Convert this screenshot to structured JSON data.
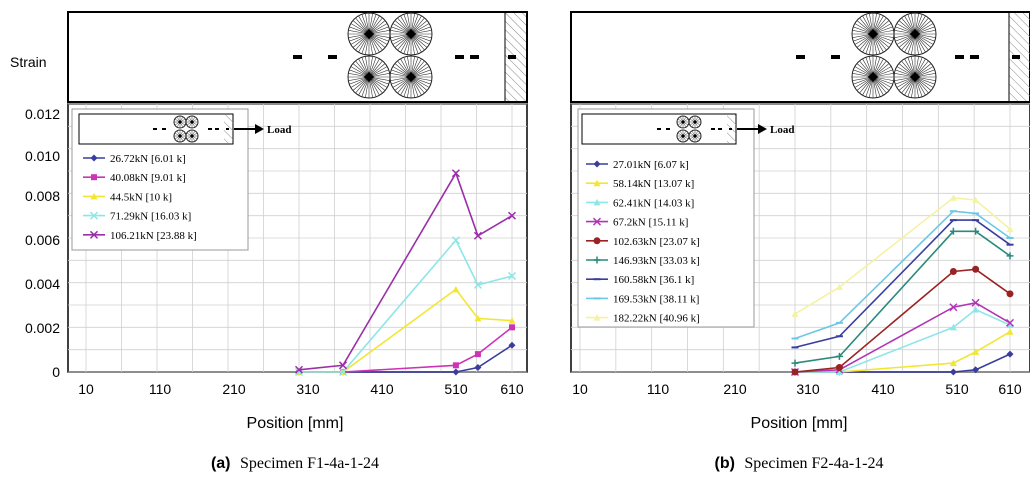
{
  "strain_label": "Strain",
  "load_label": "Load",
  "chart_data": [
    {
      "type": "line",
      "caption_letter": "(a)",
      "caption_text": "Specimen F1-4a-1-24",
      "xlabel": "Position [mm]",
      "ylabel": "Strain",
      "xlim": [
        10,
        610
      ],
      "ylim": [
        0,
        0.012
      ],
      "xticks": [
        "10",
        "110",
        "210",
        "310",
        "410",
        "510",
        "610"
      ],
      "yticks": [
        "0",
        "0.002",
        "0.004",
        "0.006",
        "0.008",
        "0.010",
        "0.012"
      ],
      "grid": true,
      "legend_position": "top-left",
      "series": [
        {
          "name": "26.72kN  [6.01 k]",
          "color": "#3a3d9e",
          "marker": "diamond",
          "x": [
            310,
            372,
            531,
            562,
            610
          ],
          "y": [
            0.0,
            0.0,
            0.0,
            0.0002,
            0.0012
          ]
        },
        {
          "name": "40.08kN  [9.01 k]",
          "color": "#cc33b5",
          "marker": "square",
          "x": [
            310,
            372,
            531,
            562,
            610
          ],
          "y": [
            0.0,
            0.0,
            0.0003,
            0.0008,
            0.002
          ]
        },
        {
          "name": "44.5kN  [10 k]",
          "color": "#f2e633",
          "marker": "triangle",
          "x": [
            310,
            372,
            531,
            562,
            610
          ],
          "y": [
            0.0,
            0.0,
            0.0037,
            0.0024,
            0.0023
          ]
        },
        {
          "name": "71.29kN  [16.03 k]",
          "color": "#8ee6e6",
          "marker": "x",
          "x": [
            310,
            372,
            531,
            562,
            610
          ],
          "y": [
            0.0,
            0.0,
            0.0059,
            0.0039,
            0.0043
          ]
        },
        {
          "name": "106.21kN  [23.88 k]",
          "color": "#9b2fa8",
          "marker": "x",
          "x": [
            310,
            372,
            531,
            562,
            610
          ],
          "y": [
            0.0001,
            0.0003,
            0.0089,
            0.0061,
            0.007
          ]
        }
      ]
    },
    {
      "type": "line",
      "caption_letter": "(b)",
      "caption_text": "Specimen F2-4a-1-24",
      "xlabel": "Position [mm]",
      "ylabel": "Strain",
      "xlim": [
        10,
        610
      ],
      "ylim": [
        0,
        0.012
      ],
      "xticks": [
        "10",
        "110",
        "210",
        "310",
        "410",
        "510",
        "610"
      ],
      "yticks": [],
      "grid": true,
      "legend_position": "top-left",
      "series": [
        {
          "name": "27.01kN  [6.07 k]",
          "color": "#3a3d9e",
          "marker": "diamond",
          "x": [
            310,
            372,
            531,
            562,
            610
          ],
          "y": [
            0.0,
            0.0,
            0.0,
            0.0001,
            0.0008
          ]
        },
        {
          "name": "58.14kN  [13.07 k]",
          "color": "#f2e633",
          "marker": "triangle",
          "x": [
            310,
            372,
            531,
            562,
            610
          ],
          "y": [
            0.0,
            0.0,
            0.0004,
            0.0009,
            0.0018
          ]
        },
        {
          "name": "62.41kN  [14.03 k]",
          "color": "#8ee6e6",
          "marker": "triangle",
          "x": [
            310,
            372,
            531,
            562,
            610
          ],
          "y": [
            0.0,
            0.0,
            0.002,
            0.0028,
            0.0021
          ]
        },
        {
          "name": "67.2kN  [15.11 k]",
          "color": "#b035b5",
          "marker": "x",
          "x": [
            310,
            372,
            531,
            562,
            610
          ],
          "y": [
            0.0,
            0.0001,
            0.0029,
            0.0031,
            0.0022
          ]
        },
        {
          "name": "102.63kN  [23.07 k]",
          "color": "#9b2222",
          "marker": "circle",
          "x": [
            310,
            372,
            531,
            562,
            610
          ],
          "y": [
            0.0,
            0.0002,
            0.0045,
            0.0046,
            0.0035
          ]
        },
        {
          "name": "146.93kN  [33.03 k]",
          "color": "#2a8a7a",
          "marker": "plus",
          "x": [
            310,
            372,
            531,
            562,
            610
          ],
          "y": [
            0.0004,
            0.0007,
            0.0063,
            0.0063,
            0.0052
          ]
        },
        {
          "name": "160.58kN  [36.1 k]",
          "color": "#3a3d9e",
          "marker": "dash",
          "x": [
            310,
            372,
            531,
            562,
            610
          ],
          "y": [
            0.0011,
            0.0016,
            0.0068,
            0.0068,
            0.0057
          ]
        },
        {
          "name": "169.53kN  [38.11 k]",
          "color": "#6cc7e6",
          "marker": "dash",
          "x": [
            310,
            372,
            531,
            562,
            610
          ],
          "y": [
            0.0015,
            0.0022,
            0.0072,
            0.0071,
            0.006
          ]
        },
        {
          "name": "182.22kN  [40.96 k]",
          "color": "#f5f2a3",
          "marker": "triangle",
          "x": [
            310,
            372,
            531,
            562,
            610
          ],
          "y": [
            0.0026,
            0.0038,
            0.0078,
            0.0077,
            0.0064
          ]
        }
      ]
    }
  ]
}
